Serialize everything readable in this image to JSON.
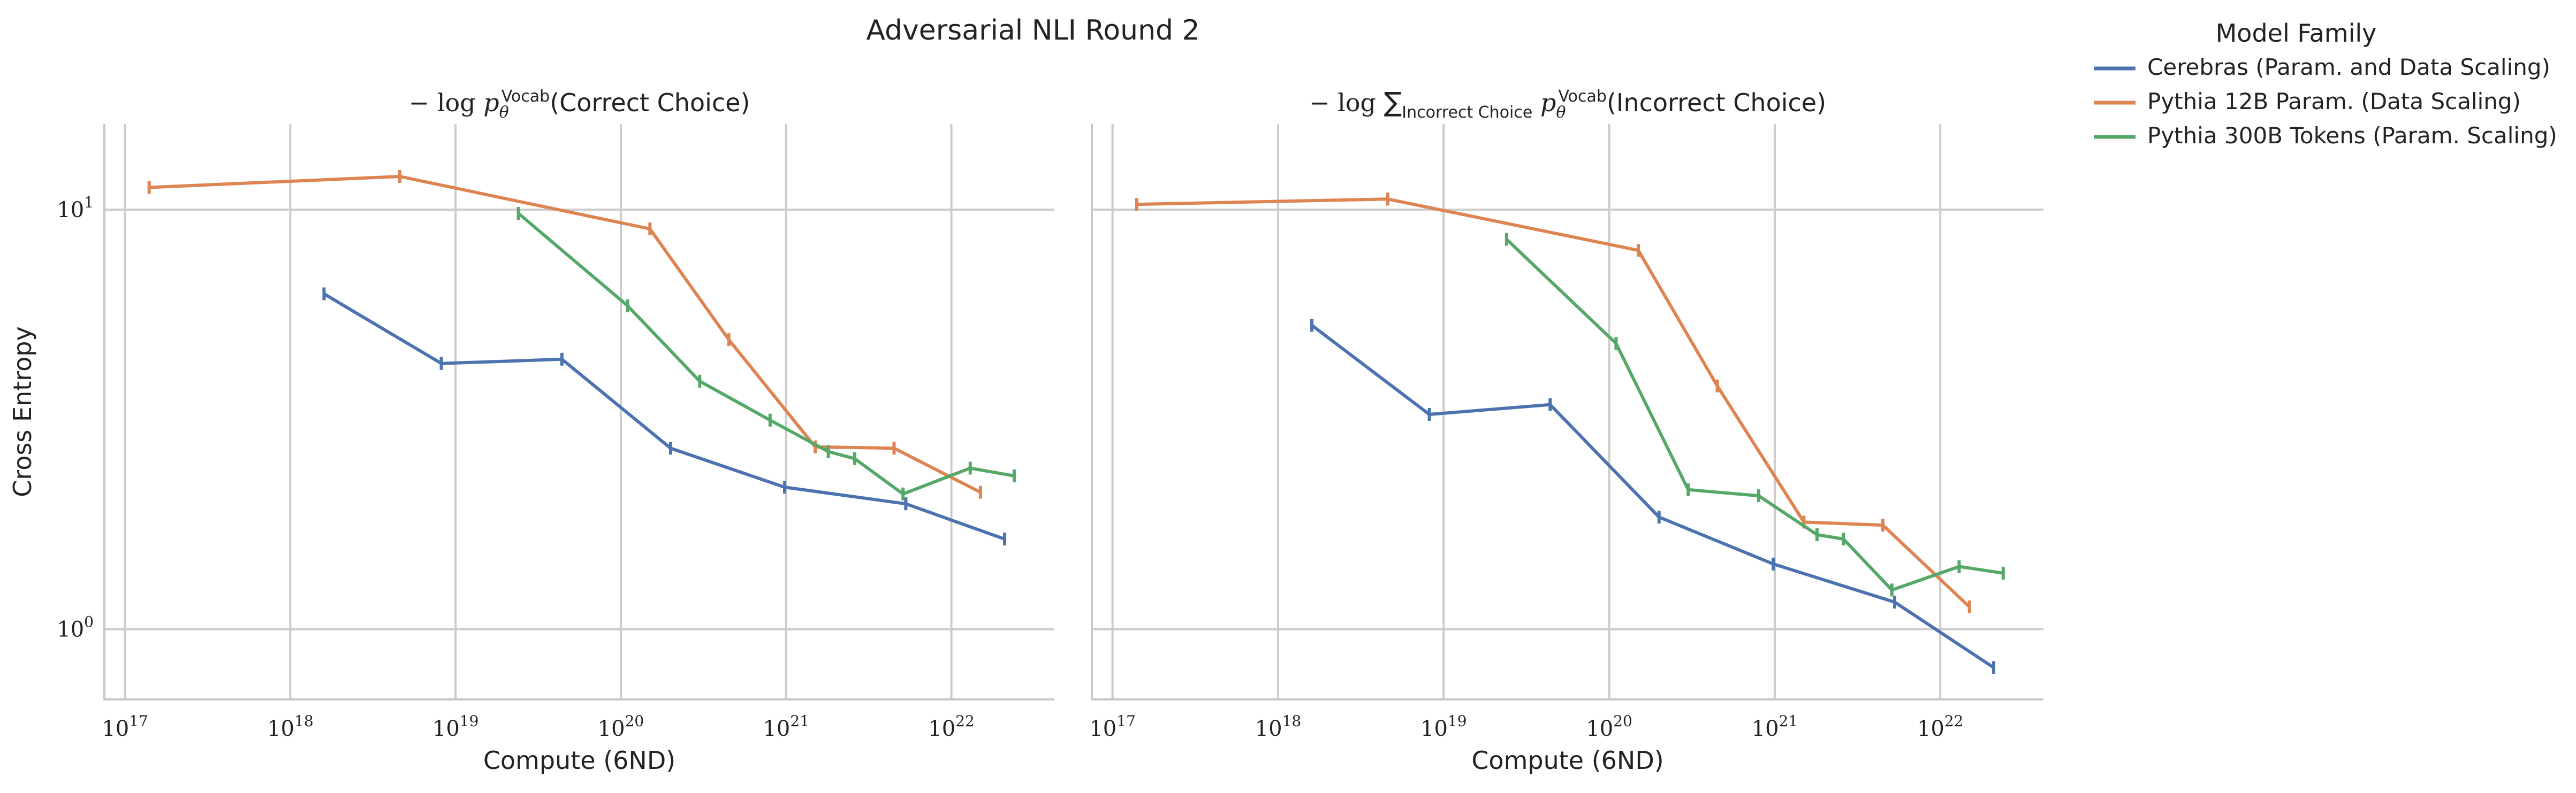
{
  "figure_title": "Adversarial NLI Round 2",
  "legend": {
    "title": "Model Family",
    "placement": "right, outside plots (top)"
  },
  "colors": {
    "Cerebras (Param. and Data Scaling)": "#4c72b0",
    "Pythia 12B Param. (Data Scaling)": "#dd8452",
    "Pythia 300B Tokens (Param. Scaling)": "#55a868",
    "grid": "#cccccc",
    "spine": "#c8c8c8"
  },
  "chart_data": [
    {
      "type": "line",
      "title": "− log p_θ^Vocab(Correct Choice)",
      "title_parts": {
        "prefix": "− log ",
        "var": "p",
        "sub": "θ",
        "sup": "Vocab",
        "suffix": "(Correct Choice)"
      },
      "xlabel": "Compute (6ND)",
      "ylabel": "Cross Entropy",
      "xscale": "log",
      "yscale": "log",
      "xlim": [
        7.5e+16,
        4.2e+22
      ],
      "ylim": [
        0.68,
        16
      ],
      "xticks": [
        1e+17,
        1e+18,
        1e+19,
        1e+20,
        1e+21,
        1e+22
      ],
      "xtick_labels": [
        [
          "10",
          "17"
        ],
        [
          "10",
          "18"
        ],
        [
          "10",
          "19"
        ],
        [
          "10",
          "20"
        ],
        [
          "10",
          "21"
        ],
        [
          "10",
          "22"
        ]
      ],
      "yticks": [
        1,
        10
      ],
      "ytick_labels": [
        [
          "10",
          "0"
        ],
        [
          "10",
          "1"
        ]
      ],
      "grid": true,
      "series": [
        {
          "name": "Cerebras (Param. and Data Scaling)",
          "x": [
            1.6e+18,
            8.2e+18,
            4.4e+19,
            2e+20,
            9.8e+20,
            5.3e+21,
            2.1e+22
          ],
          "y": [
            6.3,
            4.3,
            4.4,
            2.7,
            2.18,
            1.99,
            1.64
          ]
        },
        {
          "name": "Pythia 12B Param. (Data Scaling)",
          "x": [
            1.4e+17,
            4.6e+18,
            1.5e+20,
            4.5e+20,
            1.5e+21,
            4.5e+21,
            1.5e+22
          ],
          "y": [
            11.3,
            12.0,
            9.0,
            4.9,
            2.72,
            2.7,
            2.12
          ]
        },
        {
          "name": "Pythia 300B Tokens (Param. Scaling)",
          "x": [
            2.4e+19,
            1.1e+20,
            3e+20,
            8e+20,
            1.8e+21,
            2.6e+21,
            5.1e+21,
            1.3e+22,
            2.4e+22
          ],
          "y": [
            9.8,
            5.9,
            3.9,
            3.15,
            2.65,
            2.55,
            2.1,
            2.42,
            2.32
          ]
        }
      ]
    },
    {
      "type": "line",
      "title": "− log ∑_Incorrect Choice p_θ^Vocab(Incorrect Choice)",
      "title_parts": {
        "prefix": "− log ",
        "sum": "∑",
        "sumsub": "Incorrect Choice",
        "var": "p",
        "sub": "θ",
        "sup": "Vocab",
        "suffix": "(Incorrect Choice)"
      },
      "xlabel": "Compute (6ND)",
      "ylabel": "",
      "xscale": "log",
      "yscale": "log",
      "xlim": [
        7.5e+16,
        4.2e+22
      ],
      "ylim": [
        0.68,
        16
      ],
      "xticks": [
        1e+17,
        1e+18,
        1e+19,
        1e+20,
        1e+21,
        1e+22
      ],
      "xtick_labels": [
        [
          "10",
          "17"
        ],
        [
          "10",
          "18"
        ],
        [
          "10",
          "19"
        ],
        [
          "10",
          "20"
        ],
        [
          "10",
          "21"
        ],
        [
          "10",
          "22"
        ]
      ],
      "yticks": [
        1,
        10
      ],
      "grid": true,
      "series": [
        {
          "name": "Cerebras (Param. and Data Scaling)",
          "x": [
            1.6e+18,
            8.2e+18,
            4.4e+19,
            2e+20,
            9.8e+20,
            5.3e+21,
            2.1e+22
          ],
          "y": [
            5.3,
            3.25,
            3.43,
            1.85,
            1.43,
            1.16,
            0.81
          ]
        },
        {
          "name": "Pythia 12B Param. (Data Scaling)",
          "x": [
            1.4e+17,
            4.6e+18,
            1.5e+20,
            4.5e+20,
            1.5e+21,
            4.5e+21,
            1.5e+22
          ],
          "y": [
            10.3,
            10.6,
            8.0,
            3.8,
            1.8,
            1.77,
            1.13
          ]
        },
        {
          "name": "Pythia 300B Tokens (Param. Scaling)",
          "x": [
            2.4e+19,
            1.1e+20,
            3e+20,
            8e+20,
            1.8e+21,
            2.6e+21,
            5.1e+21,
            1.3e+22,
            2.4e+22
          ],
          "y": [
            8.5,
            4.8,
            2.15,
            2.08,
            1.68,
            1.64,
            1.24,
            1.41,
            1.36
          ]
        }
      ]
    }
  ]
}
